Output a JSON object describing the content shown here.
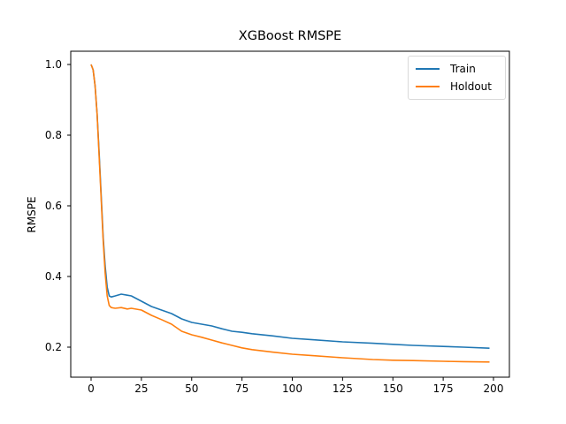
{
  "chart_data": {
    "type": "line",
    "title": "XGBoost RMSPE",
    "xlabel": "",
    "ylabel": "RMSPE",
    "xlim": [
      -9,
      209
    ],
    "ylim": [
      0.12,
      1.04
    ],
    "xticks": [
      0,
      25,
      50,
      75,
      100,
      125,
      150,
      175,
      200
    ],
    "yticks": [
      0.2,
      0.4,
      0.6,
      0.8,
      1.0
    ],
    "xtick_labels": [
      "0",
      "25",
      "50",
      "75",
      "100",
      "125",
      "150",
      "175",
      "200"
    ],
    "ytick_labels": [
      "0.2",
      "0.4",
      "0.6",
      "0.8",
      "1.0"
    ],
    "grid": false,
    "legend_position": "upper right",
    "series": [
      {
        "name": "Train",
        "color": "#1f77b4",
        "x": [
          0,
          1,
          2,
          3,
          4,
          5,
          6,
          7,
          8,
          9,
          10,
          12,
          15,
          18,
          20,
          25,
          30,
          35,
          40,
          45,
          50,
          55,
          60,
          65,
          70,
          75,
          80,
          90,
          100,
          110,
          125,
          140,
          150,
          160,
          175,
          185,
          198
        ],
        "values": [
          1.0,
          0.985,
          0.94,
          0.86,
          0.75,
          0.63,
          0.51,
          0.43,
          0.37,
          0.345,
          0.342,
          0.345,
          0.35,
          0.347,
          0.345,
          0.33,
          0.315,
          0.305,
          0.295,
          0.28,
          0.27,
          0.265,
          0.26,
          0.252,
          0.245,
          0.242,
          0.238,
          0.232,
          0.225,
          0.221,
          0.215,
          0.211,
          0.208,
          0.205,
          0.202,
          0.2,
          0.197
        ]
      },
      {
        "name": "Holdout",
        "color": "#ff7f0e",
        "x": [
          0,
          1,
          2,
          3,
          4,
          5,
          6,
          7,
          8,
          9,
          10,
          12,
          15,
          18,
          20,
          25,
          30,
          35,
          40,
          45,
          50,
          55,
          60,
          65,
          70,
          75,
          80,
          90,
          100,
          110,
          125,
          140,
          150,
          160,
          175,
          185,
          198
        ],
        "values": [
          1.0,
          0.985,
          0.94,
          0.86,
          0.74,
          0.62,
          0.5,
          0.41,
          0.345,
          0.318,
          0.312,
          0.31,
          0.312,
          0.308,
          0.31,
          0.305,
          0.29,
          0.278,
          0.265,
          0.245,
          0.235,
          0.228,
          0.22,
          0.212,
          0.205,
          0.198,
          0.193,
          0.186,
          0.18,
          0.176,
          0.17,
          0.165,
          0.163,
          0.162,
          0.16,
          0.159,
          0.158
        ]
      }
    ]
  }
}
